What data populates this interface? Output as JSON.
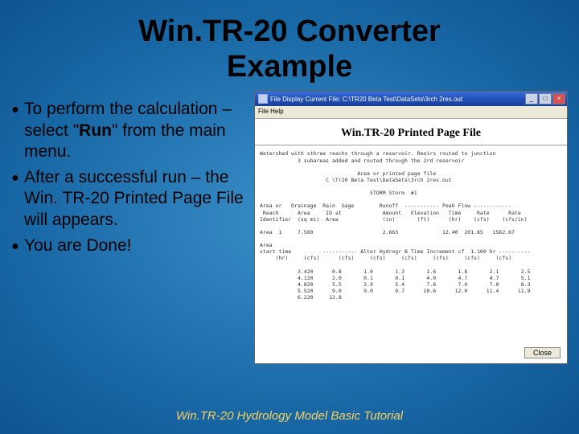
{
  "title_line1": "Win.TR-20 Converter",
  "title_line2": "Example",
  "bullets": [
    {
      "pre": "To perform the calculation – select \"",
      "bold": "Run",
      "post": "\" from the main menu."
    },
    {
      "pre": "After a successful run – the Win. TR-20 Printed Page File will appears.",
      "bold": "",
      "post": ""
    },
    {
      "pre": "You are Done!",
      "bold": "",
      "post": ""
    }
  ],
  "window": {
    "titlebar_text": "File Display   Current File:  C:\\TR20 Beta  Test\\DataSets\\3rch  2res.out",
    "menubar": "File   Help",
    "printed_title": "Win.TR-20 Printed Page File",
    "mono_lines": [
      "Watershed with sthree reachs through a reservoir. Reoirs routed to junction",
      "            3 subareas added and routed through the 2rd reservoir",
      "",
      "                               Area or printed page file",
      "                     C \\Tr20 Beta Test\\DataSets\\3rch 2res.out",
      "",
      "                                   STORM Storm  #1",
      "",
      "Area or   Drainage  Rain  Gage        Runoff  ----------- Peak Flow ------------",
      " Reach      Area     ID at             Amount   Elevation   Time     Rate      Rate",
      "Identifier  (sq mi)  Area              (in)       (ft)      (hr)    (cfs)    (cfs/in)",
      "",
      "Area  1     7.560                      2.663              12.40  201.85   1562.67",
      "",
      "Area",
      "start time          ----------- Alter Hydrogr B Time Increment cf  1.100 hr ----------",
      "     (hr)     (cfs)      (cfs)     (cfs)     (cfs)     (cfs)     (cfs)     (cfs)",
      "",
      "            3.420      0.8       1.0       1.3       1.6       1.8       2.1       2.5",
      "            4.120      2.0       0.1       0.1       4.0       4.7       4.7       5.1",
      "            4.820      5.5       3.9       5.4       7.6       7.0       7.0       8.3",
      "            5.520      9.0       9.0       9.7      10.6      12.0      11.4      11.9",
      "            6.220     12.8"
    ],
    "close_label": "Close",
    "win_buttons": {
      "min": "_",
      "max": "□",
      "close": "×"
    }
  },
  "footer": "Win.TR-20 Hydrology Model Basic Tutorial",
  "colors": {
    "bg_center": "#3a8fc8",
    "bg_edge": "#0d5490",
    "footer_text": "#f5d060",
    "titlebar_start": "#3a6fd8",
    "titlebar_end": "#1a4098",
    "menubar_bg": "#ece9d8"
  }
}
